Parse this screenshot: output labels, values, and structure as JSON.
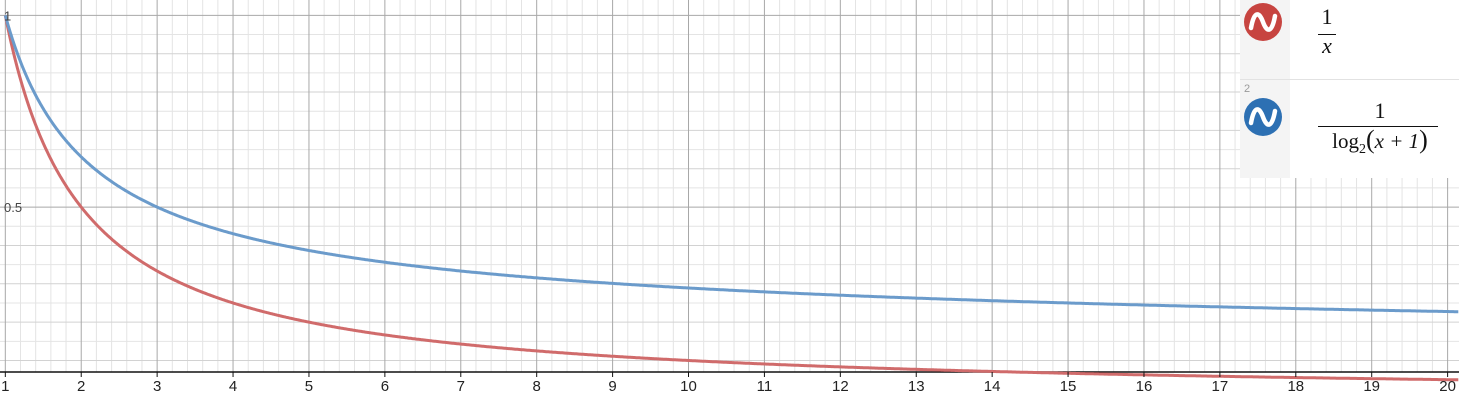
{
  "chart_data": {
    "type": "line",
    "xlim": [
      0.93,
      20.15
    ],
    "ylim": [
      0.07,
      1.04
    ],
    "x_ticks": [
      1,
      2,
      3,
      4,
      5,
      6,
      7,
      8,
      9,
      10,
      11,
      12,
      13,
      14,
      15,
      16,
      17,
      18,
      19,
      20
    ],
    "y_ticks": [
      {
        "value": 1,
        "label": "1"
      },
      {
        "value": 0.5,
        "label": "0.5"
      }
    ],
    "grid": true,
    "series": [
      {
        "expr": "1/x",
        "color": "#d06b6b"
      },
      {
        "expr": "1/log2(x+1)",
        "color": "#6b9bcb"
      }
    ]
  },
  "expression_list": {
    "items": [
      {
        "index": "",
        "color": "#c74440",
        "icon": "wave-icon",
        "numerator": "1",
        "denominator": "x"
      },
      {
        "index": "2",
        "color": "#2d70b3",
        "icon": "wave-icon",
        "numerator": "1",
        "den_func": "log",
        "den_sub": "2",
        "den_arg": "x + 1"
      }
    ]
  }
}
